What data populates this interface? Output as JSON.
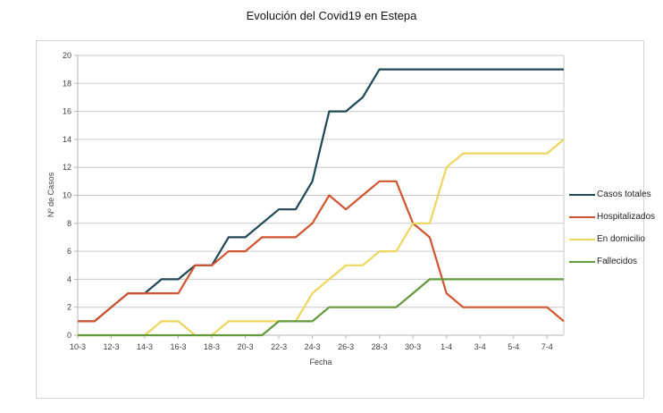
{
  "title": "Evolución del Covid19 en Estepa",
  "style": {
    "grid_color": "#c9c9c9",
    "axis_color": "#b5b5b5",
    "tick_label_color": "#3f3f3f"
  },
  "chart_data": {
    "type": "line",
    "title": "Evolución del Covid19 en Estepa",
    "xlabel": "Fecha",
    "ylabel": "Nº de Casos",
    "ylim": [
      0,
      20
    ],
    "ytick_step": 2,
    "xticks_every": 2,
    "grid": true,
    "legend_position": "right",
    "x": [
      "10-3",
      "11-3",
      "12-3",
      "13-3",
      "14-3",
      "15-3",
      "16-3",
      "17-3",
      "18-3",
      "19-3",
      "20-3",
      "21-3",
      "22-3",
      "23-3",
      "24-3",
      "25-3",
      "26-3",
      "27-3",
      "28-3",
      "29-3",
      "30-3",
      "31-3",
      "1-4",
      "2-4",
      "3-4",
      "4-4",
      "5-4",
      "6-4",
      "7-4",
      "8-4"
    ],
    "series": [
      {
        "name": "Casos totales",
        "color": "#1f4757",
        "values": [
          1,
          1,
          2,
          3,
          3,
          4,
          4,
          5,
          5,
          7,
          7,
          8,
          9,
          9,
          11,
          16,
          16,
          17,
          19,
          19,
          19,
          19,
          19,
          19,
          19,
          19,
          19,
          19,
          19,
          19
        ]
      },
      {
        "name": "Hospitalizados",
        "color": "#d0542f",
        "values": [
          1,
          1,
          2,
          3,
          3,
          3,
          3,
          5,
          5,
          6,
          6,
          7,
          7,
          7,
          8,
          10,
          9,
          10,
          11,
          11,
          8,
          7,
          3,
          2,
          2,
          2,
          2,
          2,
          2,
          1
        ]
      },
      {
        "name": "En domicilio",
        "color": "#edd65e",
        "values": [
          0,
          0,
          0,
          0,
          0,
          1,
          1,
          0,
          0,
          1,
          1,
          1,
          1,
          1,
          3,
          4,
          5,
          5,
          6,
          6,
          8,
          8,
          12,
          13,
          13,
          13,
          13,
          13,
          13,
          14
        ]
      },
      {
        "name": "Fallecidos",
        "color": "#61993b",
        "values": [
          0,
          0,
          0,
          0,
          0,
          0,
          0,
          0,
          0,
          0,
          0,
          0,
          1,
          1,
          1,
          2,
          2,
          2,
          2,
          2,
          3,
          4,
          4,
          4,
          4,
          4,
          4,
          4,
          4,
          4
        ]
      }
    ]
  }
}
